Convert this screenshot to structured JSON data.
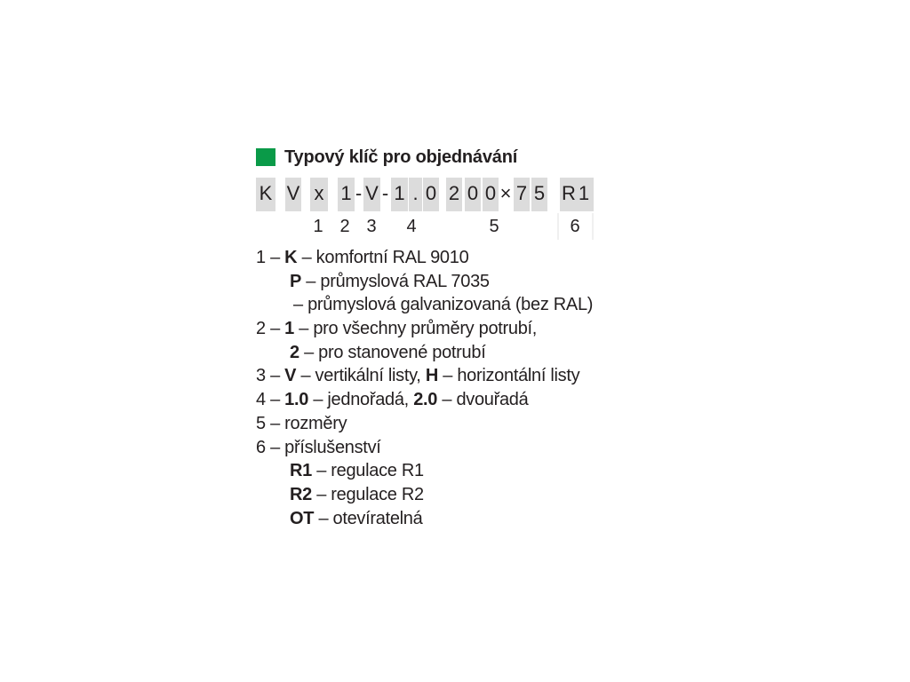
{
  "accent_color": "#0a9a48",
  "box_color": "#dcdcdc",
  "title": "Typový klíč pro objednávání",
  "code": [
    {
      "ch": "K",
      "boxed": true
    },
    {
      "ch": "V",
      "boxed": true
    },
    {
      "ch": "x",
      "boxed": true
    },
    {
      "ch": "1",
      "boxed": true
    },
    {
      "ch": "-",
      "boxed": false
    },
    {
      "ch": "V",
      "boxed": true
    },
    {
      "ch": "-",
      "boxed": false
    },
    {
      "ch": "1",
      "boxed": true
    },
    {
      "ch": ".",
      "boxed": true
    },
    {
      "ch": "0",
      "boxed": true
    },
    {
      "ch": "2",
      "boxed": true
    },
    {
      "ch": "0",
      "boxed": true
    },
    {
      "ch": "0",
      "boxed": true
    },
    {
      "ch": "×",
      "boxed": false
    },
    {
      "ch": "7",
      "boxed": true
    },
    {
      "ch": "5",
      "boxed": true
    },
    {
      "ch": "R1",
      "boxed": true
    }
  ],
  "positions": [
    "1",
    "2",
    "3",
    "4",
    "5",
    "6"
  ],
  "legend": [
    {
      "indent": 0,
      "parts": [
        {
          "t": "1 – "
        },
        {
          "t": "K",
          "b": true
        },
        {
          "t": " – komfortní RAL 9010"
        }
      ]
    },
    {
      "indent": 1,
      "parts": [
        {
          "t": "P",
          "b": true
        },
        {
          "t": " – průmyslová RAL 7035"
        }
      ]
    },
    {
      "indent": 2,
      "parts": [
        {
          "t": "– průmyslová galvanizovaná (bez RAL)"
        }
      ]
    },
    {
      "indent": 0,
      "parts": [
        {
          "t": "2 – "
        },
        {
          "t": "1",
          "b": true
        },
        {
          "t": " – pro všechny průměry potrubí,"
        }
      ]
    },
    {
      "indent": 1,
      "parts": [
        {
          "t": "2",
          "b": true
        },
        {
          "t": " – pro stanovené potrubí"
        }
      ]
    },
    {
      "indent": 0,
      "parts": [
        {
          "t": "3 – "
        },
        {
          "t": "V",
          "b": true
        },
        {
          "t": " – vertikální listy, "
        },
        {
          "t": "H",
          "b": true
        },
        {
          "t": " – horizontální listy"
        }
      ]
    },
    {
      "indent": 0,
      "parts": [
        {
          "t": "4 – "
        },
        {
          "t": "1.0",
          "b": true
        },
        {
          "t": " – jednořadá, "
        },
        {
          "t": "2.0",
          "b": true
        },
        {
          "t": " – dvouřadá"
        }
      ]
    },
    {
      "indent": 0,
      "parts": [
        {
          "t": "5 – rozměry"
        }
      ]
    },
    {
      "indent": 0,
      "parts": [
        {
          "t": "6 – příslušenství"
        }
      ]
    },
    {
      "indent": 1,
      "parts": [
        {
          "t": "R1",
          "b": true
        },
        {
          "t": " – regulace R1"
        }
      ]
    },
    {
      "indent": 1,
      "parts": [
        {
          "t": "R2",
          "b": true
        },
        {
          "t": " – regulace R2"
        }
      ]
    },
    {
      "indent": 1,
      "parts": [
        {
          "t": "OT",
          "b": true
        },
        {
          "t": " – otevíratelná"
        }
      ]
    }
  ]
}
